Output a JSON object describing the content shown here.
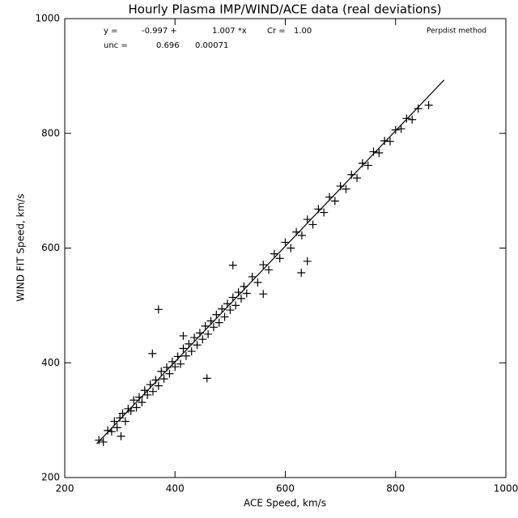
{
  "chart_data": {
    "type": "scatter",
    "title": "Hourly Plasma IMP/WIND/ACE data (real deviations)",
    "x_label": "ACE Speed, km/s",
    "y_label": "WIND FIT Speed, km/s",
    "annotations": [
      "y =",
      "-0.997 +",
      "1.007 *x",
      "Cr =",
      "1.00",
      "unc =",
      "0.696",
      "0.00071",
      "Perpdist method"
    ],
    "xlim": [
      200,
      1000
    ],
    "ylim": [
      200,
      1000
    ],
    "xticks": [
      200,
      400,
      600,
      800,
      1000
    ],
    "yticks": [
      200,
      400,
      600,
      800,
      1000
    ],
    "color": "#000000",
    "series": [
      {
        "x": [
          262,
          270,
          278,
          285,
          290,
          295,
          300,
          305,
          310,
          315,
          320,
          325,
          330,
          335,
          340,
          345,
          350,
          355,
          360,
          365,
          370,
          375,
          380,
          385,
          390,
          395,
          400,
          405,
          410,
          415,
          420,
          425,
          430,
          435,
          440,
          445,
          450,
          455,
          460,
          465,
          470,
          475,
          480,
          485,
          490,
          495,
          500,
          505,
          510,
          515,
          520,
          525,
          530,
          540,
          550,
          560,
          570,
          580,
          590,
          600,
          610,
          620,
          630,
          640,
          650,
          660,
          670,
          680,
          690,
          700,
          710,
          720,
          730,
          740,
          750,
          760,
          770,
          780,
          790,
          800,
          810,
          820,
          830,
          841,
          860,
          370,
          458,
          629,
          640,
          505,
          359,
          302,
          415,
          560
        ],
        "values": [
          265,
          262,
          282,
          280,
          298,
          287,
          304,
          312,
          298,
          320,
          316,
          335,
          322,
          340,
          331,
          352,
          344,
          362,
          350,
          370,
          360,
          385,
          372,
          392,
          381,
          402,
          393,
          411,
          398,
          425,
          412,
          433,
          420,
          444,
          431,
          452,
          441,
          464,
          450,
          473,
          462,
          484,
          470,
          494,
          480,
          503,
          492,
          514,
          500,
          523,
          512,
          533,
          521,
          550,
          540,
          571,
          562,
          590,
          582,
          610,
          600,
          628,
          622,
          650,
          641,
          668,
          662,
          689,
          682,
          708,
          703,
          728,
          722,
          748,
          744,
          768,
          766,
          787,
          786,
          806,
          808,
          826,
          824,
          843,
          849,
          493,
          373,
          557,
          577,
          570,
          416,
          272,
          447,
          520
        ]
      }
    ],
    "fit_line": {
      "x": [
        258,
        888
      ],
      "y": [
        259,
        893
      ]
    }
  }
}
